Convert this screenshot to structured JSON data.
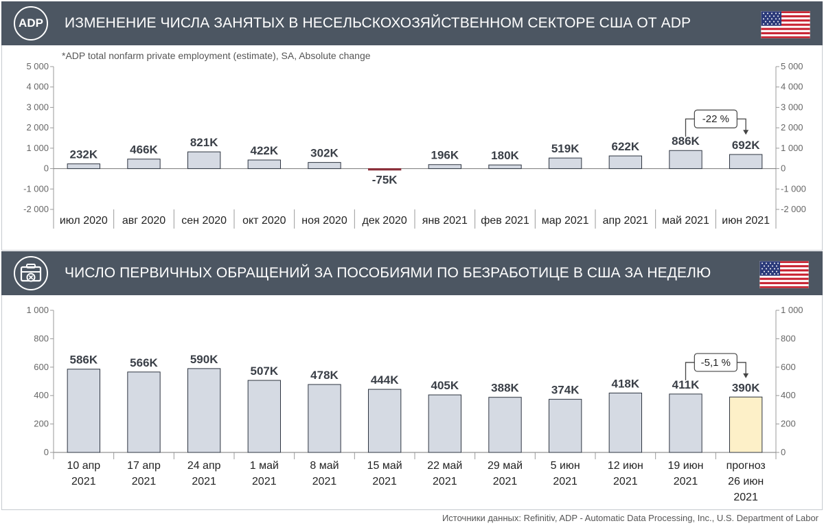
{
  "section1": {
    "icon_text": "ADP",
    "title": "ИЗМЕНЕНИЕ ЧИСЛА ЗАНЯТЫХ В НЕСЕЛЬСКОХОЗЯЙСТВЕННОМ СЕКТОРЕ США ОТ ADP",
    "flag_icon": "us-flag-icon"
  },
  "section2": {
    "icon": "briefcase-x-icon",
    "title": "ЧИСЛО ПЕРВИЧНЫХ ОБРАЩЕНИЙ ЗА ПОСОБИЯМИ ПО БЕЗРАБОТИЦЕ В США ЗА НЕДЕЛЮ",
    "flag_icon": "us-flag-icon"
  },
  "source": "Источники данных: Refinitiv, ADP - Automatic Data Processing, Inc., U.S. Department of Labor",
  "colors": {
    "header_bg": "#4c5662",
    "bar_fill": "#d5dae3",
    "bar_stroke": "#2d3440",
    "forecast_fill": "#fdf0c8",
    "negative_bar": "#8c2f3a"
  },
  "chart_data": [
    {
      "type": "bar",
      "subtitle": "*ADP total nonfarm private employment (estimate), SA, Absolute change",
      "categories": [
        "июл 2020",
        "авг 2020",
        "сен 2020",
        "окт 2020",
        "ноя 2020",
        "дек 2020",
        "янв 2021",
        "фев 2021",
        "мар 2021",
        "апр 2021",
        "май 2021",
        "июн 2021"
      ],
      "values": [
        232,
        466,
        821,
        422,
        302,
        -75,
        196,
        180,
        519,
        622,
        886,
        692
      ],
      "data_labels": [
        "232K",
        "466K",
        "821K",
        "422K",
        "302K",
        "-75K",
        "196K",
        "180K",
        "519K",
        "622K",
        "886K",
        "692K"
      ],
      "ylim": [
        -2000,
        5000
      ],
      "yticks": [
        5000,
        4000,
        3000,
        2000,
        1000,
        0,
        -1000,
        -2000
      ],
      "ytick_labels": [
        "5 000",
        "4 000",
        "3 000",
        "2 000",
        "1 000",
        "0",
        "-1 000",
        "-2 000"
      ],
      "axes": "left-and-right",
      "grid": false,
      "annotation": {
        "text": "-22 %",
        "from_index": 10,
        "to_index": 11
      }
    },
    {
      "type": "bar",
      "categories": [
        [
          "10 апр",
          "2021"
        ],
        [
          "17 апр",
          "2021"
        ],
        [
          "24 апр",
          "2021"
        ],
        [
          "1 май",
          "2021"
        ],
        [
          "8 май",
          "2021"
        ],
        [
          "15 май",
          "2021"
        ],
        [
          "22 май",
          "2021"
        ],
        [
          "29 май",
          "2021"
        ],
        [
          "5 июн",
          "2021"
        ],
        [
          "12 июн",
          "2021"
        ],
        [
          "19 июн",
          "2021"
        ],
        [
          "прогноз",
          "26 июн",
          "2021"
        ]
      ],
      "values": [
        586,
        566,
        590,
        507,
        478,
        444,
        405,
        388,
        374,
        418,
        411,
        390
      ],
      "data_labels": [
        "586K",
        "566K",
        "590K",
        "507K",
        "478K",
        "444K",
        "405K",
        "388K",
        "374K",
        "418K",
        "411K",
        "390K"
      ],
      "forecast_index": 11,
      "ylim": [
        0,
        1000
      ],
      "yticks": [
        1000,
        800,
        600,
        400,
        200,
        0
      ],
      "ytick_labels": [
        "1 000",
        "800",
        "600",
        "400",
        "200",
        "0"
      ],
      "axes": "left-and-right",
      "grid": false,
      "annotation": {
        "text": "-5,1 %",
        "from_index": 10,
        "to_index": 11
      }
    }
  ]
}
